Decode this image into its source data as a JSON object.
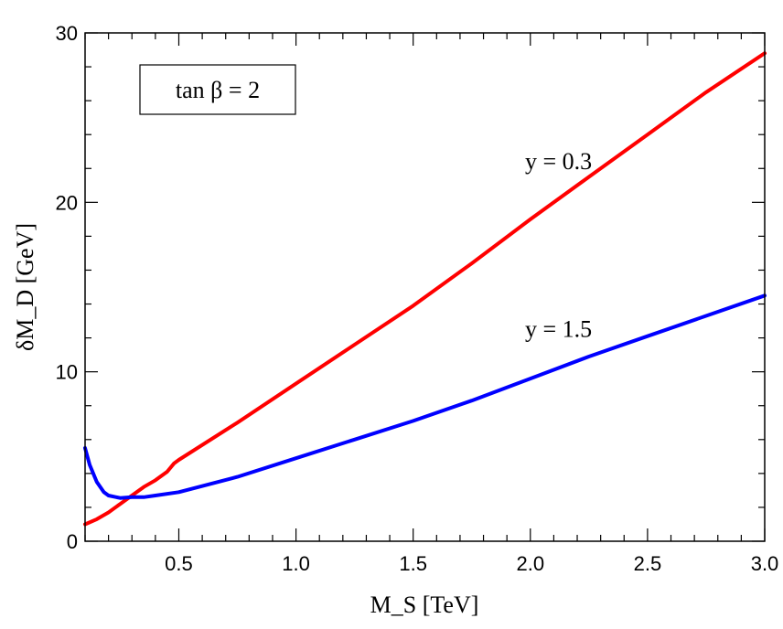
{
  "chart_data": {
    "type": "line",
    "xlabel": "M_S [TeV]",
    "ylabel": "δM_D [GeV]",
    "xlim": [
      0.1,
      3.0
    ],
    "ylim": [
      0,
      30
    ],
    "x_ticks": [
      "0.5",
      "1.0",
      "1.5",
      "2.0",
      "2.5",
      "3.0"
    ],
    "x_tick_values": [
      0.5,
      1.0,
      1.5,
      2.0,
      2.5,
      3.0
    ],
    "y_ticks": [
      "0",
      "10",
      "20",
      "30"
    ],
    "y_tick_values": [
      0,
      10,
      20,
      30
    ],
    "grid": false,
    "legend_box": "tan β = 2",
    "colors": {
      "y_0_3": "#ff0000",
      "y_1_5": "#0000ff"
    },
    "series": [
      {
        "name": "y = 0.3",
        "color": "#ff0000",
        "x": [
          0.1,
          0.15,
          0.2,
          0.25,
          0.3,
          0.35,
          0.4,
          0.45,
          0.48,
          0.5,
          0.75,
          1.0,
          1.25,
          1.5,
          1.75,
          2.0,
          2.25,
          2.5,
          2.75,
          3.0
        ],
        "y": [
          1.0,
          1.3,
          1.7,
          2.2,
          2.7,
          3.2,
          3.6,
          4.1,
          4.6,
          4.8,
          7.0,
          9.3,
          11.6,
          13.9,
          16.4,
          19.0,
          21.5,
          24.0,
          26.5,
          28.8
        ]
      },
      {
        "name": "y = 1.5",
        "color": "#0000ff",
        "x": [
          0.1,
          0.12,
          0.15,
          0.18,
          0.2,
          0.25,
          0.3,
          0.35,
          0.4,
          0.5,
          0.75,
          1.0,
          1.25,
          1.5,
          1.75,
          2.0,
          2.25,
          2.5,
          2.75,
          3.0
        ],
        "y": [
          5.5,
          4.5,
          3.5,
          2.9,
          2.7,
          2.55,
          2.6,
          2.6,
          2.7,
          2.9,
          3.8,
          4.9,
          6.0,
          7.1,
          8.3,
          9.6,
          10.9,
          12.1,
          13.3,
          14.5
        ]
      }
    ],
    "annotations": [
      {
        "text": "y = 0.3",
        "x": 2.12,
        "y": 22.4
      },
      {
        "text": "y = 1.5",
        "x": 2.12,
        "y": 12.5
      }
    ]
  }
}
